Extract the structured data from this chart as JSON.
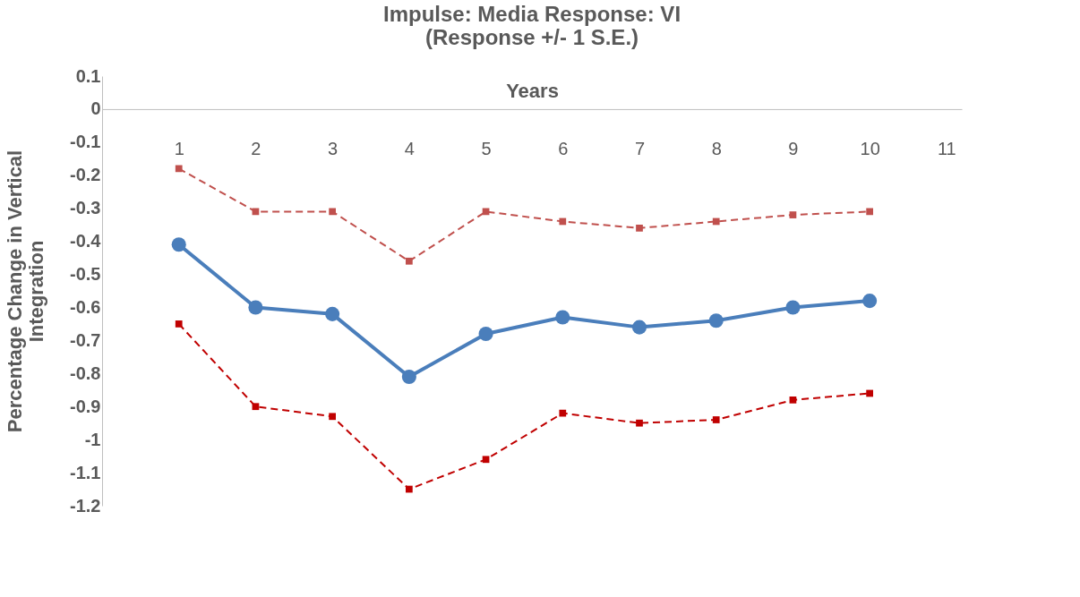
{
  "chart_data": {
    "type": "line",
    "title": [
      "Impulse:  Media          Response: VI",
      "(Response +/-  1 S.E.)"
    ],
    "xlabel": "Years",
    "ylabel": [
      "Percentage Change in  Vertical",
      "Integration"
    ],
    "x": [
      1,
      2,
      3,
      4,
      5,
      6,
      7,
      8,
      9,
      10
    ],
    "xlim": [
      0,
      11.2
    ],
    "xticks": [
      1,
      2,
      3,
      4,
      5,
      6,
      7,
      8,
      9,
      10,
      11
    ],
    "ylim": [
      -1.2,
      0.1
    ],
    "yticks": [
      -1.2,
      -1.1,
      -1,
      -0.9,
      -0.8,
      -0.7,
      -0.6,
      -0.5,
      -0.4,
      -0.3,
      -0.2,
      -0.1,
      0,
      0.1
    ],
    "grid": false,
    "series": [
      {
        "color": "#c0504d",
        "marker": "square",
        "line_style": "dashed",
        "values": [
          -0.18,
          -0.31,
          -0.31,
          -0.46,
          -0.31,
          -0.34,
          -0.36,
          -0.34,
          -0.32,
          -0.31
        ]
      },
      {
        "color": "#4a7ebb",
        "marker": "circle",
        "line_style": "solid",
        "values": [
          -0.41,
          -0.6,
          -0.62,
          -0.81,
          -0.68,
          -0.63,
          -0.66,
          -0.64,
          -0.6,
          -0.58
        ]
      },
      {
        "color": "#c00000",
        "marker": "square",
        "line_style": "dashed",
        "values": [
          -0.65,
          -0.9,
          -0.93,
          -1.15,
          -1.06,
          -0.92,
          -0.95,
          -0.94,
          -0.88,
          -0.86
        ]
      }
    ]
  }
}
